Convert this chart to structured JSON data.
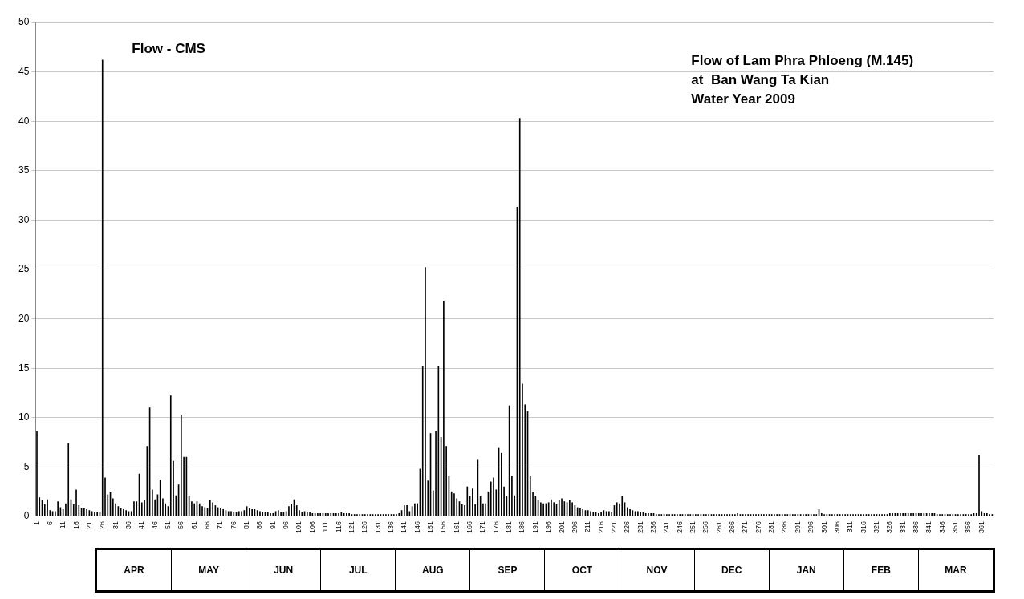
{
  "chart_data": {
    "type": "bar",
    "title": "Flow of Lam Phra Phloeng (M.145)\nat  Ban Wang Ta Kian\nWater Year 2009",
    "ylabel": "Flow - CMS",
    "color": "#000000",
    "ylim": [
      0,
      50
    ],
    "yticks": [
      0,
      5,
      10,
      15,
      20,
      25,
      30,
      35,
      40,
      45,
      50
    ],
    "grid": "y",
    "annotations": [
      "APR",
      "MAY",
      "JUN",
      "JUL",
      "AUG",
      "SEP",
      "OCT",
      "NOV",
      "DEC",
      "JAN",
      "FEB",
      "MAR"
    ],
    "categories": [
      "1",
      null,
      null,
      null,
      null,
      "6",
      null,
      null,
      null,
      null,
      "11",
      null,
      null,
      null,
      null,
      "16",
      null,
      null,
      null,
      null,
      "21",
      null,
      null,
      null,
      null,
      "26",
      null,
      null,
      null,
      null,
      "31",
      null,
      null,
      null,
      null,
      "36",
      null,
      null,
      null,
      null,
      "41",
      null,
      null,
      null,
      null,
      "46",
      null,
      null,
      null,
      null,
      "51",
      null,
      null,
      null,
      null,
      "56",
      null,
      null,
      null,
      null,
      "61",
      null,
      null,
      null,
      null,
      "66",
      null,
      null,
      null,
      null,
      "71",
      null,
      null,
      null,
      null,
      "76",
      null,
      null,
      null,
      null,
      "81",
      null,
      null,
      null,
      null,
      "86",
      null,
      null,
      null,
      null,
      "91",
      null,
      null,
      null,
      null,
      "96",
      null,
      null,
      null,
      null,
      "101",
      null,
      null,
      null,
      null,
      "106",
      null,
      null,
      null,
      null,
      "111",
      null,
      null,
      null,
      null,
      "116",
      null,
      null,
      null,
      null,
      "121",
      null,
      null,
      null,
      null,
      "126",
      null,
      null,
      null,
      null,
      "131",
      null,
      null,
      null,
      null,
      "136",
      null,
      null,
      null,
      null,
      "141",
      null,
      null,
      null,
      null,
      "146",
      null,
      null,
      null,
      null,
      "151",
      null,
      null,
      null,
      null,
      "156",
      null,
      null,
      null,
      null,
      "161",
      null,
      null,
      null,
      null,
      "166",
      null,
      null,
      null,
      null,
      "171",
      null,
      null,
      null,
      null,
      "176",
      null,
      null,
      null,
      null,
      "181",
      null,
      null,
      null,
      null,
      "186",
      null,
      null,
      null,
      null,
      "191",
      null,
      null,
      null,
      null,
      "196",
      null,
      null,
      null,
      null,
      "201",
      null,
      null,
      null,
      null,
      "206",
      null,
      null,
      null,
      null,
      "211",
      null,
      null,
      null,
      null,
      "216",
      null,
      null,
      null,
      null,
      "221",
      null,
      null,
      null,
      null,
      "226",
      null,
      null,
      null,
      null,
      "231",
      null,
      null,
      null,
      null,
      "236",
      null,
      null,
      null,
      null,
      "241",
      null,
      null,
      null,
      null,
      "246",
      null,
      null,
      null,
      null,
      "251",
      null,
      null,
      null,
      null,
      "256",
      null,
      null,
      null,
      null,
      "261",
      null,
      null,
      null,
      null,
      "266",
      null,
      null,
      null,
      null,
      "271",
      null,
      null,
      null,
      null,
      "276",
      null,
      null,
      null,
      null,
      "281",
      null,
      null,
      null,
      null,
      "286",
      null,
      null,
      null,
      null,
      "291",
      null,
      null,
      null,
      null,
      "296",
      null,
      null,
      null,
      null,
      "301",
      null,
      null,
      null,
      null,
      "306",
      null,
      null,
      null,
      null,
      "311",
      null,
      null,
      null,
      null,
      "316",
      null,
      null,
      null,
      null,
      "321",
      null,
      null,
      null,
      null,
      "326",
      null,
      null,
      null,
      null,
      "331",
      null,
      null,
      null,
      null,
      "336",
      null,
      null,
      null,
      null,
      "341",
      null,
      null,
      null,
      null,
      "346",
      null,
      null,
      null,
      null,
      "351",
      null,
      null,
      null,
      null,
      "356",
      null,
      null,
      null,
      null,
      "361",
      null,
      null,
      null,
      null
    ],
    "values": [
      8.6,
      1.9,
      1.6,
      1.2,
      1.7,
      0.6,
      0.5,
      0.5,
      1.5,
      0.9,
      0.7,
      1.3,
      7.4,
      1.7,
      1.2,
      2.7,
      1.1,
      0.8,
      0.8,
      0.7,
      0.6,
      0.5,
      0.4,
      0.4,
      0.4,
      46.2,
      3.9,
      2.2,
      2.4,
      1.8,
      1.3,
      1.0,
      0.8,
      0.7,
      0.6,
      0.5,
      0.5,
      1.5,
      1.5,
      4.3,
      1.4,
      1.6,
      7.1,
      11.0,
      2.7,
      1.7,
      2.2,
      3.7,
      1.8,
      1.3,
      1.0,
      12.2,
      5.6,
      2.1,
      3.2,
      10.2,
      6.0,
      6.0,
      2.0,
      1.5,
      1.3,
      1.5,
      1.3,
      1.0,
      0.9,
      0.8,
      1.6,
      1.4,
      1.1,
      0.9,
      0.8,
      0.7,
      0.6,
      0.5,
      0.5,
      0.4,
      0.4,
      0.5,
      0.5,
      0.6,
      1.0,
      0.8,
      0.7,
      0.7,
      0.6,
      0.5,
      0.4,
      0.4,
      0.4,
      0.3,
      0.3,
      0.5,
      0.6,
      0.4,
      0.4,
      0.5,
      1.0,
      1.2,
      1.7,
      1.1,
      0.6,
      0.4,
      0.5,
      0.4,
      0.4,
      0.3,
      0.3,
      0.3,
      0.3,
      0.3,
      0.3,
      0.3,
      0.3,
      0.3,
      0.3,
      0.3,
      0.4,
      0.3,
      0.3,
      0.3,
      0.2,
      0.2,
      0.2,
      0.2,
      0.2,
      0.2,
      0.2,
      0.2,
      0.2,
      0.2,
      0.2,
      0.2,
      0.2,
      0.2,
      0.2,
      0.2,
      0.2,
      0.2,
      0.3,
      0.6,
      1.1,
      1.1,
      0.5,
      1.0,
      1.3,
      1.3,
      4.8,
      15.2,
      25.2,
      3.6,
      8.4,
      2.6,
      8.6,
      15.2,
      8.0,
      21.8,
      7.1,
      4.1,
      2.5,
      2.3,
      1.8,
      1.5,
      1.2,
      1.1,
      3.0,
      2.0,
      2.8,
      1.2,
      5.7,
      2.0,
      1.3,
      1.3,
      2.5,
      3.5,
      3.9,
      2.7,
      6.9,
      6.4,
      3.0,
      2.0,
      11.2,
      4.1,
      2.1,
      31.3,
      40.3,
      13.4,
      11.3,
      10.6,
      4.1,
      2.4,
      2.0,
      1.6,
      1.4,
      1.3,
      1.3,
      1.4,
      1.7,
      1.4,
      1.2,
      1.6,
      1.8,
      1.5,
      1.4,
      1.6,
      1.4,
      1.1,
      0.9,
      0.8,
      0.7,
      0.6,
      0.6,
      0.5,
      0.4,
      0.4,
      0.3,
      0.4,
      0.6,
      0.5,
      0.5,
      0.4,
      1.1,
      1.4,
      1.3,
      2.0,
      1.4,
      0.9,
      0.7,
      0.6,
      0.5,
      0.5,
      0.4,
      0.4,
      0.3,
      0.3,
      0.3,
      0.3,
      0.2,
      0.2,
      0.2,
      0.2,
      0.2,
      0.2,
      0.2,
      0.2,
      0.2,
      0.2,
      0.2,
      0.2,
      0.2,
      0.2,
      0.2,
      0.2,
      0.2,
      0.2,
      0.2,
      0.2,
      0.2,
      0.2,
      0.2,
      0.2,
      0.2,
      0.2,
      0.2,
      0.2,
      0.2,
      0.2,
      0.2,
      0.3,
      0.2,
      0.2,
      0.2,
      0.2,
      0.2,
      0.2,
      0.2,
      0.2,
      0.2,
      0.2,
      0.2,
      0.2,
      0.2,
      0.2,
      0.2,
      0.2,
      0.2,
      0.2,
      0.2,
      0.2,
      0.2,
      0.2,
      0.2,
      0.2,
      0.2,
      0.2,
      0.2,
      0.2,
      0.2,
      0.2,
      0.7,
      0.3,
      0.2,
      0.2,
      0.2,
      0.2,
      0.2,
      0.2,
      0.2,
      0.2,
      0.2,
      0.2,
      0.2,
      0.2,
      0.2,
      0.2,
      0.2,
      0.2,
      0.2,
      0.2,
      0.2,
      0.2,
      0.2,
      0.2,
      0.2,
      0.2,
      0.2,
      0.3,
      0.3,
      0.3,
      0.3,
      0.3,
      0.3,
      0.3,
      0.3,
      0.3,
      0.3,
      0.3,
      0.3,
      0.3,
      0.3,
      0.3,
      0.3,
      0.3,
      0.3,
      0.2,
      0.2,
      0.2,
      0.2,
      0.2,
      0.2,
      0.2,
      0.2,
      0.2,
      0.2,
      0.2,
      0.2,
      0.2,
      0.2,
      0.3,
      0.3,
      6.2,
      0.5,
      0.3,
      0.3,
      0.2,
      0.2
    ]
  }
}
